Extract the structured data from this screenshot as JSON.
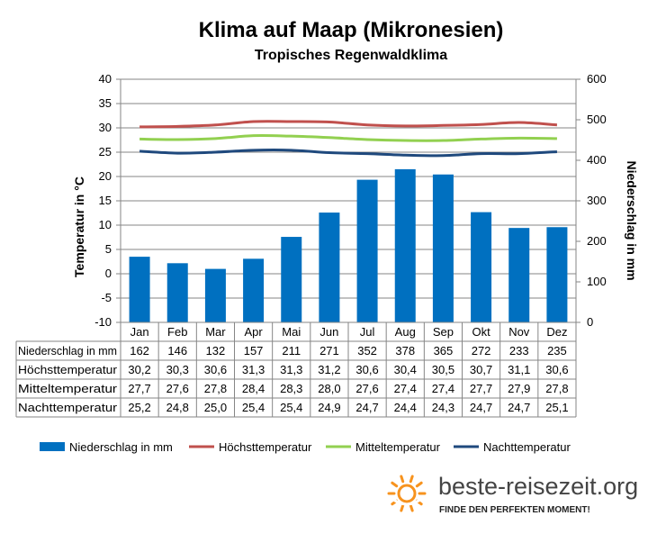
{
  "chart_data": {
    "type": "bar",
    "title": "Klima auf Maap (Mikronesien)",
    "subtitle": "Tropisches Regenwaldklima",
    "categories": [
      "Jan",
      "Feb",
      "Mar",
      "Apr",
      "Mai",
      "Jun",
      "Jul",
      "Aug",
      "Sep",
      "Okt",
      "Nov",
      "Dez"
    ],
    "y_left": {
      "label": "Temperatur in °C",
      "range": [
        -10,
        40
      ],
      "ticks": [
        "-10",
        "-5",
        "0",
        "5",
        "10",
        "15",
        "20",
        "25",
        "30",
        "35",
        "40"
      ]
    },
    "y_right": {
      "label": "Niederschlag in mm",
      "range": [
        0,
        600
      ],
      "ticks": [
        "0",
        "100",
        "200",
        "300",
        "400",
        "500",
        "600"
      ]
    },
    "bars": {
      "name": "Niederschlag in mm",
      "axis": "right",
      "color": "#0070c0",
      "values": [
        162,
        146,
        132,
        157,
        211,
        271,
        352,
        378,
        365,
        272,
        233,
        235
      ],
      "labels": [
        "162",
        "146",
        "132",
        "157",
        "211",
        "271",
        "352",
        "378",
        "365",
        "272",
        "233",
        "235"
      ]
    },
    "series": [
      {
        "name": "Höchsttemperatur",
        "axis": "left",
        "color": "#c0504d",
        "values": [
          30.2,
          30.3,
          30.6,
          31.3,
          31.3,
          31.2,
          30.6,
          30.4,
          30.5,
          30.7,
          31.1,
          30.6
        ],
        "labels": [
          "30,2",
          "30,3",
          "30,6",
          "31,3",
          "31,3",
          "31,2",
          "30,6",
          "30,4",
          "30,5",
          "30,7",
          "31,1",
          "30,6"
        ]
      },
      {
        "name": "Mitteltemperatur",
        "axis": "left",
        "color": "#92d050",
        "values": [
          27.7,
          27.6,
          27.8,
          28.4,
          28.3,
          28.0,
          27.6,
          27.4,
          27.4,
          27.7,
          27.9,
          27.8
        ],
        "labels": [
          "27,7",
          "27,6",
          "27,8",
          "28,4",
          "28,3",
          "28,0",
          "27,6",
          "27,4",
          "27,4",
          "27,7",
          "27,9",
          "27,8"
        ]
      },
      {
        "name": "Nachttemperatur",
        "axis": "left",
        "color": "#1f497d",
        "values": [
          25.2,
          24.8,
          25.0,
          25.4,
          25.4,
          24.9,
          24.7,
          24.4,
          24.3,
          24.7,
          24.7,
          25.1
        ],
        "labels": [
          "25,2",
          "24,8",
          "25,0",
          "25,4",
          "25,4",
          "24,9",
          "24,7",
          "24,4",
          "24,3",
          "24,7",
          "24,7",
          "25,1"
        ]
      }
    ],
    "grid": true,
    "legend": "bottom"
  },
  "brand": {
    "name": "beste-reisezeit.org",
    "tagline": "FINDE DEN PERFEKTEN MOMENT!",
    "sun_color": "#f7931e"
  }
}
